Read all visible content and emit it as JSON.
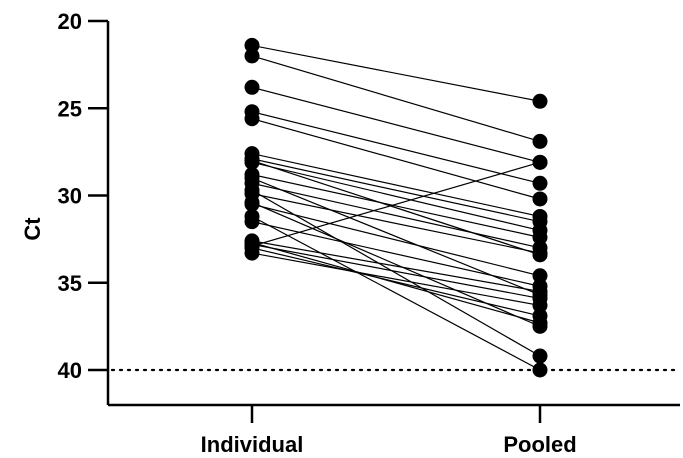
{
  "chart_data": {
    "type": "line",
    "ylabel": "Ct",
    "xlabel": "",
    "categories": [
      "Individual",
      "Pooled"
    ],
    "y_axis": {
      "min": 20,
      "max": 42,
      "inverted": true,
      "ticks": [
        "20",
        "25",
        "30",
        "35",
        "40"
      ]
    },
    "reference_line": {
      "y": 40,
      "style": "dotted"
    },
    "grid": false,
    "pairs": [
      [
        21.4,
        24.6
      ],
      [
        22.0,
        26.9
      ],
      [
        23.8,
        28.1
      ],
      [
        25.2,
        29.3
      ],
      [
        25.6,
        30.2
      ],
      [
        27.6,
        31.2
      ],
      [
        27.9,
        31.5
      ],
      [
        28.1,
        32.0
      ],
      [
        28.8,
        32.4
      ],
      [
        29.3,
        33.0
      ],
      [
        29.9,
        33.3
      ],
      [
        30.5,
        34.6
      ],
      [
        31.5,
        35.2
      ],
      [
        32.6,
        35.5
      ],
      [
        32.8,
        35.9
      ],
      [
        33.3,
        36.3
      ],
      [
        33.0,
        36.9
      ],
      [
        32.7,
        37.3
      ],
      [
        30.4,
        37.5
      ],
      [
        29.7,
        39.2
      ],
      [
        31.2,
        40.0
      ],
      [
        32.9,
        28.1
      ],
      [
        28.0,
        33.4
      ],
      [
        29.0,
        35.7
      ]
    ]
  }
}
